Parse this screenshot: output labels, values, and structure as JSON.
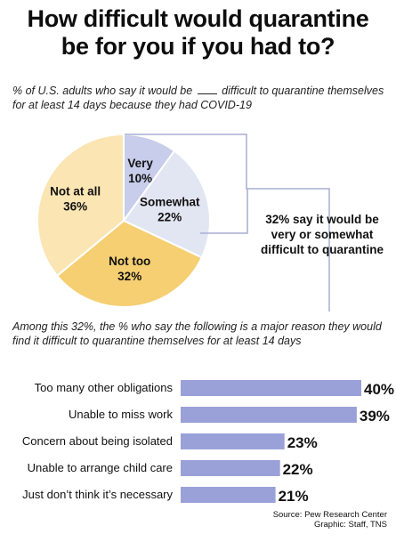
{
  "title_line1": "How difficult would quarantine",
  "title_line2": "be for you if you had to?",
  "subtitle_part1": "% of U.S. adults who say it would be",
  "subtitle_part2": "difficult to quarantine themselves for at least 14 days because they had COVID-19",
  "callout": "32% say it would be very or somewhat difficult to quarantine",
  "subtitle2": "Among this 32%, the % who say the following is a major reason they would find it difficult to quarantine themselves for at least 14 days",
  "source_line1": "Source: Pew Research Center",
  "source_line2": "Graphic: Staff, TNS",
  "colors": {
    "very": "#c7cdea",
    "somewhat": "#e2e5f2",
    "not_too": "#f6cf73",
    "not_at_all": "#fbe5b3",
    "bar": "#9aa1d8",
    "line": "#a9aed2"
  },
  "chart_data": [
    {
      "type": "pie",
      "categories": [
        "Very",
        "Somewhat",
        "Not too",
        "Not at all"
      ],
      "values": [
        10,
        22,
        32,
        36
      ],
      "labels": [
        "10%",
        "22%",
        "32%",
        "36%"
      ]
    },
    {
      "type": "bar",
      "orientation": "horizontal",
      "categories": [
        "Too many other obligations",
        "Unable to miss work",
        "Concern about being isolated",
        "Unable to arrange child care",
        "Just don’t think it’s necessary"
      ],
      "values": [
        40,
        39,
        23,
        22,
        21
      ],
      "labels": [
        "40%",
        "39%",
        "23%",
        "22%",
        "21%"
      ]
    }
  ]
}
